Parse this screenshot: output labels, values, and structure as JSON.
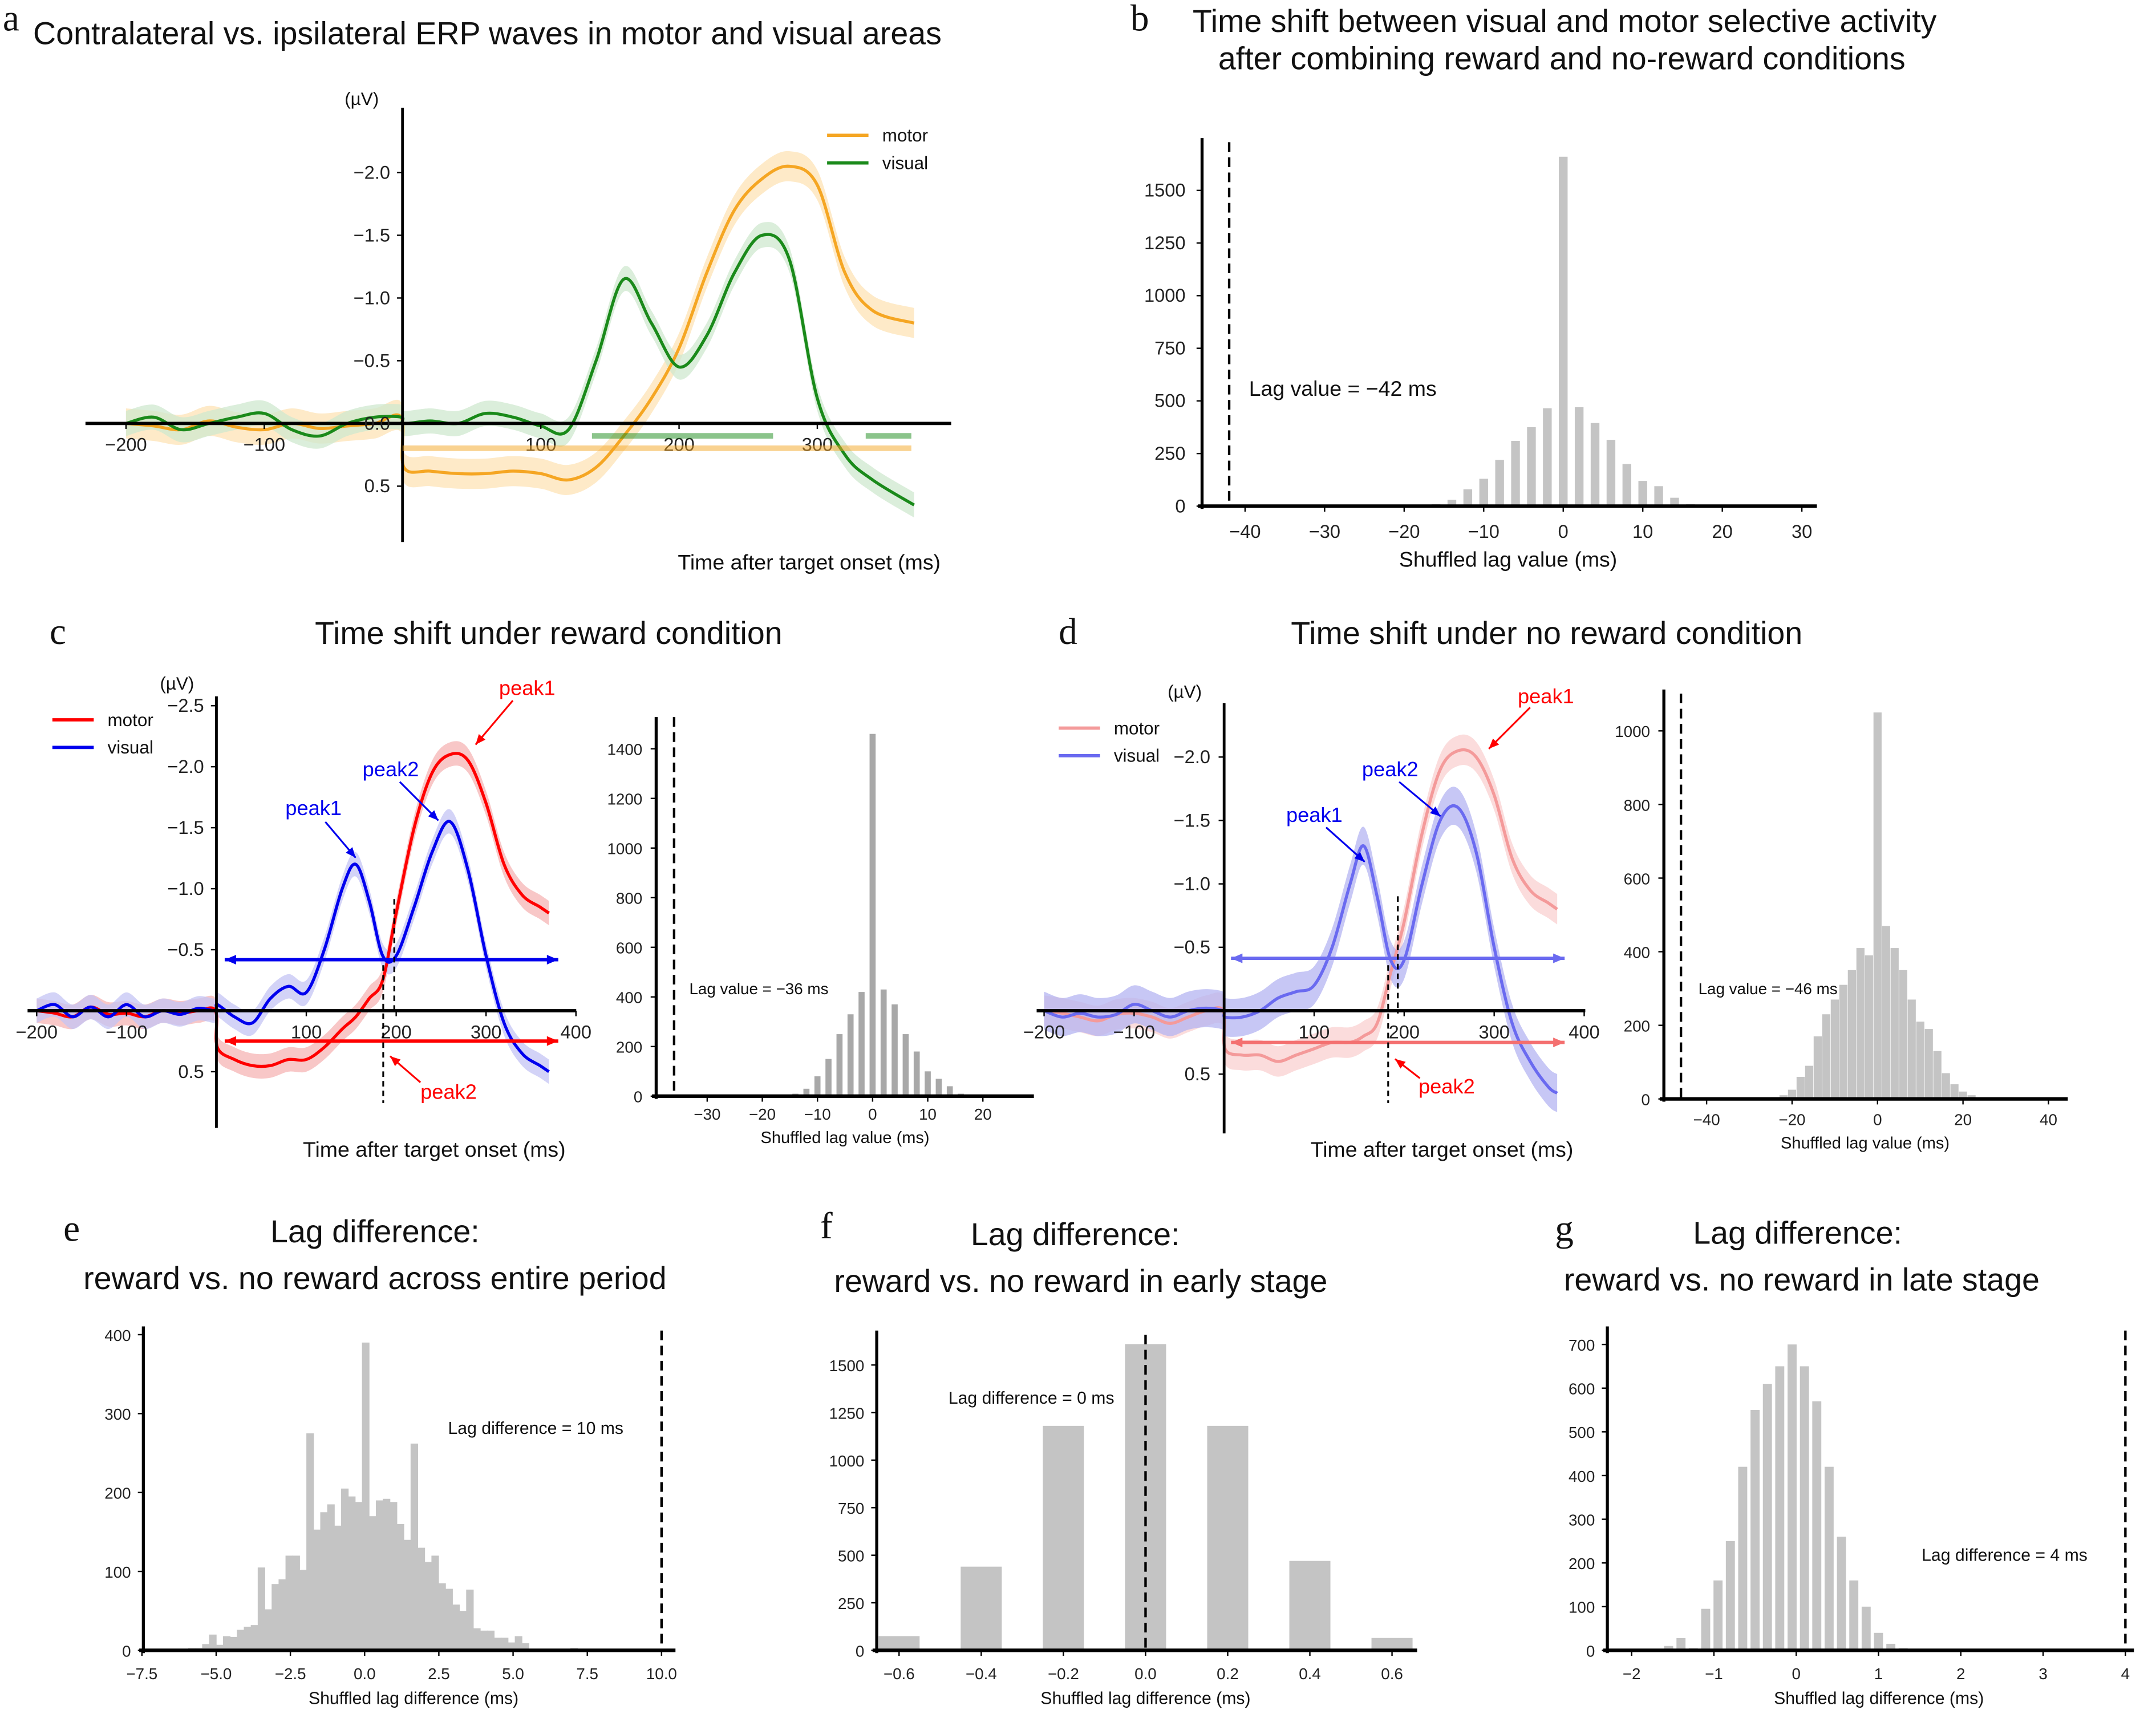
{
  "panels": {
    "a": {
      "letter": "a",
      "title": "Contralateral vs. ipsilateral ERP waves in motor and visual areas",
      "unit": "(µV)",
      "xlabel": "Time after target onset (ms)"
    },
    "b": {
      "letter": "b",
      "title_line1": "Time shift between visual and motor selective activity",
      "title_line2": "after combining reward and no-reward conditions",
      "xlabel": "Shuffled lag value (ms)",
      "annotation": "Lag value = −42 ms"
    },
    "c": {
      "letter": "c",
      "title": "Time shift under reward condition",
      "unit": "(µV)",
      "xlabel": "Time after target onset (ms)",
      "hist_xlabel": "Shuffled lag value (ms)",
      "annotation": "Lag value = −36 ms",
      "peak1_visual": "peak1",
      "peak2_visual": "peak2",
      "peak1_motor": "peak1",
      "peak2_motor": "peak2"
    },
    "d": {
      "letter": "d",
      "title": "Time shift under no reward condition",
      "unit": "(µV)",
      "xlabel": "Time after target onset (ms)",
      "hist_xlabel": "Shuffled lag value (ms)",
      "annotation": "Lag value = −46 ms",
      "peak1_visual": "peak1",
      "peak2_visual": "peak2",
      "peak1_motor": "peak1",
      "peak2_motor": "peak2"
    },
    "e": {
      "letter": "e",
      "title_line1": "Lag difference:",
      "title_line2": "reward vs. no reward across entire period",
      "xlabel": "Shuffled lag difference (ms)",
      "annotation": "Lag difference = 10 ms"
    },
    "f": {
      "letter": "f",
      "title_line1": "Lag difference:",
      "title_line2": "reward vs. no reward in early stage",
      "xlabel": "Shuffled lag difference (ms)",
      "annotation": "Lag difference = 0 ms"
    },
    "g": {
      "letter": "g",
      "title_line1": "Lag difference:",
      "title_line2": "reward vs. no reward in late stage",
      "xlabel": "Shuffled lag difference (ms)",
      "annotation": "Lag difference = 4 ms"
    }
  },
  "chart_data": [
    {
      "id": "a",
      "type": "line",
      "ylabel": "(µV)",
      "xlabel": "Time after target onset (ms)",
      "y_inverted": true,
      "xticks": [
        "−200",
        "−100",
        "100",
        "200",
        "300"
      ],
      "yticks": [
        "−2.0",
        "−1.5",
        "−1.0",
        "−0.5",
        "0.0",
        "0.5"
      ],
      "legend": "top-right",
      "x": [
        -200,
        -180,
        -160,
        -140,
        -120,
        -100,
        -80,
        -60,
        -40,
        -20,
        -1,
        1,
        20,
        40,
        60,
        80,
        100,
        120,
        140,
        160,
        180,
        200,
        220,
        240,
        260,
        280,
        300,
        320,
        340,
        370
      ],
      "series": [
        {
          "name": "motor",
          "color": "#f5a623",
          "band": "#fde3b6",
          "ci": 0.12,
          "values": [
            0,
            0.02,
            0.05,
            -0.02,
            0.03,
            0.05,
            0,
            0.04,
            0.02,
            0,
            -0.05,
            0.35,
            0.38,
            0.4,
            0.4,
            0.38,
            0.4,
            0.45,
            0.35,
            0.1,
            -0.2,
            -0.6,
            -1.2,
            -1.7,
            -1.95,
            -2.05,
            -1.9,
            -1.2,
            -0.9,
            -0.8
          ]
        },
        {
          "name": "visual",
          "color": "#1a8a1a",
          "band": "#cfe8cf",
          "ci": 0.1,
          "values": [
            0,
            -0.05,
            0.05,
            0,
            -0.05,
            -0.08,
            0.05,
            0.1,
            0,
            -0.05,
            -0.05,
            0,
            -0.02,
            0,
            -0.08,
            -0.05,
            0.02,
            0.05,
            -0.5,
            -1.15,
            -0.8,
            -0.45,
            -0.7,
            -1.2,
            -1.5,
            -1.3,
            -0.2,
            0.25,
            0.45,
            0.65
          ]
        }
      ],
      "significance": [
        {
          "series": "visual",
          "ranges": [
            [
              137,
              268
            ],
            [
              335,
              368
            ]
          ]
        },
        {
          "series": "motor",
          "ranges": [
            [
              0,
              368
            ]
          ]
        }
      ]
    },
    {
      "id": "b",
      "type": "bar",
      "xlabel": "Shuffled lag value (ms)",
      "xlim": [
        -45,
        31
      ],
      "ylim": [
        0,
        1750
      ],
      "xticks": [
        "−40",
        "−30",
        "−20",
        "−10",
        "0",
        "10",
        "20",
        "30"
      ],
      "yticks": [
        "0",
        "250",
        "500",
        "750",
        "1000",
        "1250",
        "1500"
      ],
      "bins": [
        -16,
        -14,
        -12,
        -10,
        -8,
        -6,
        -4,
        -2,
        0,
        2,
        4,
        6,
        8,
        10,
        12,
        14,
        16
      ],
      "counts": [
        10,
        30,
        80,
        130,
        220,
        310,
        375,
        465,
        1660,
        470,
        395,
        315,
        200,
        120,
        95,
        40,
        10
      ],
      "bar_width": 1.1,
      "observed_value": -42,
      "annotation": "Lag value = −42 ms"
    },
    {
      "id": "c-erp",
      "type": "line",
      "ylabel": "(µV)",
      "xlabel": "Time after target onset (ms)",
      "y_inverted": true,
      "xticks": [
        "−200",
        "−100",
        "100",
        "200",
        "300",
        "400"
      ],
      "yticks": [
        "−2.5",
        "−2.0",
        "−1.5",
        "−1.0",
        "−0.5",
        "0.5"
      ],
      "legend": "top-left",
      "x": [
        -200,
        -180,
        -160,
        -140,
        -120,
        -100,
        -80,
        -60,
        -40,
        -20,
        -1,
        1,
        20,
        40,
        60,
        80,
        100,
        120,
        140,
        155,
        170,
        185,
        200,
        220,
        240,
        260,
        280,
        300,
        320,
        340,
        360,
        370
      ],
      "series": [
        {
          "name": "motor",
          "color": "#ff0000",
          "band": "#f6b4b4",
          "ci": 0.1,
          "values": [
            0,
            0.02,
            0.05,
            -0.03,
            0.03,
            0.02,
            0.05,
            0,
            0.02,
            0,
            0,
            0.3,
            0.4,
            0.45,
            0.45,
            0.4,
            0.4,
            0.3,
            0.15,
            0.05,
            -0.1,
            -0.25,
            -0.8,
            -1.5,
            -1.95,
            -2.1,
            -2.05,
            -1.7,
            -1.2,
            -0.95,
            -0.85,
            -0.8
          ]
        },
        {
          "name": "visual",
          "color": "#0000ee",
          "band": "#c4c4f4",
          "ci": 0.1,
          "values": [
            0,
            -0.05,
            0.05,
            -0.03,
            0.05,
            -0.05,
            0.05,
            0,
            0.03,
            -0.02,
            0,
            -0.05,
            0.05,
            0.1,
            -0.1,
            -0.2,
            -0.15,
            -0.5,
            -1.0,
            -1.2,
            -0.9,
            -0.45,
            -0.45,
            -0.85,
            -1.3,
            -1.55,
            -1.15,
            -0.45,
            0.1,
            0.35,
            0.45,
            0.5
          ]
        }
      ]
    },
    {
      "id": "c-hist",
      "type": "bar",
      "xlabel": "Shuffled lag value (ms)",
      "xticks": [
        "−30",
        "−20",
        "−10",
        "0",
        "10",
        "20"
      ],
      "yticks": [
        "0",
        "200",
        "400",
        "600",
        "800",
        "1000",
        "1200",
        "1400"
      ],
      "bins": [
        -16,
        -14,
        -12,
        -10,
        -8,
        -6,
        -4,
        -2,
        0,
        2,
        4,
        6,
        8,
        10,
        12,
        14,
        16
      ],
      "counts": [
        5,
        10,
        30,
        80,
        150,
        250,
        330,
        420,
        1460,
        430,
        370,
        250,
        180,
        100,
        70,
        40,
        10
      ],
      "bar_width": 1.1,
      "observed_value": -36,
      "annotation": "Lag value = −36 ms"
    },
    {
      "id": "d-erp",
      "type": "line",
      "ylabel": "(µV)",
      "xlabel": "Time after target onset (ms)",
      "y_inverted": true,
      "xticks": [
        "−200",
        "−100",
        "100",
        "200",
        "300",
        "400"
      ],
      "yticks": [
        "−2.0",
        "−1.5",
        "−1.0",
        "−0.5",
        "0.5"
      ],
      "legend": "top-left",
      "x": [
        -200,
        -180,
        -160,
        -140,
        -120,
        -100,
        -80,
        -60,
        -40,
        -20,
        -1,
        1,
        20,
        40,
        60,
        80,
        100,
        120,
        140,
        155,
        170,
        185,
        200,
        220,
        240,
        260,
        280,
        300,
        320,
        340,
        360,
        370
      ],
      "series": [
        {
          "name": "motor",
          "color": "#f49a9a",
          "band": "#fad0d0",
          "ci": 0.12,
          "values": [
            0,
            0.02,
            0.05,
            0.08,
            0.03,
            0.02,
            0.05,
            0.1,
            0.05,
            0,
            0,
            0.3,
            0.35,
            0.35,
            0.4,
            0.35,
            0.3,
            0.25,
            0.25,
            0.2,
            0.1,
            -0.3,
            -0.7,
            -1.4,
            -1.9,
            -2.05,
            -2.0,
            -1.7,
            -1.2,
            -0.95,
            -0.85,
            -0.8
          ]
        },
        {
          "name": "visual",
          "color": "#6a6af0",
          "band": "#b4b4f2",
          "ci": 0.15,
          "values": [
            0,
            0.05,
            0.02,
            0.05,
            0.03,
            -0.05,
            0,
            0.05,
            0,
            -0.02,
            0,
            0.05,
            0.05,
            0,
            -0.1,
            -0.15,
            -0.2,
            -0.5,
            -1.0,
            -1.3,
            -0.9,
            -0.4,
            -0.4,
            -1.0,
            -1.5,
            -1.6,
            -1.25,
            -0.5,
            0.1,
            0.4,
            0.6,
            0.65
          ]
        }
      ]
    },
    {
      "id": "d-hist",
      "type": "bar",
      "xlabel": "Shuffled lag value (ms)",
      "xticks": [
        "−40",
        "−20",
        "0",
        "20",
        "40"
      ],
      "yticks": [
        "0",
        "200",
        "400",
        "600",
        "800",
        "1000"
      ],
      "bins": [
        -24,
        -22,
        -20,
        -18,
        -16,
        -14,
        -12,
        -10,
        -8,
        -6,
        -4,
        -2,
        0,
        2,
        4,
        6,
        8,
        10,
        12,
        14,
        16,
        18,
        20,
        22
      ],
      "counts": [
        5,
        10,
        25,
        60,
        90,
        170,
        230,
        270,
        310,
        350,
        410,
        390,
        1050,
        470,
        410,
        350,
        270,
        210,
        190,
        130,
        70,
        40,
        20,
        10
      ],
      "bar_width": 1.9,
      "observed_value": -46,
      "annotation": "Lag value = −46 ms"
    },
    {
      "id": "e",
      "type": "bar",
      "xlabel": "Shuffled lag difference (ms)",
      "xticks": [
        "−7.5",
        "−5.0",
        "−2.5",
        "0.0",
        "2.5",
        "5.0",
        "7.5",
        "10.0"
      ],
      "yticks": [
        "0",
        "100",
        "200",
        "300",
        "400"
      ],
      "bin_start": -5.94,
      "bar_width": 0.234,
      "counts": [
        3,
        3,
        8,
        20,
        7,
        18,
        17,
        26,
        30,
        32,
        105,
        52,
        84,
        90,
        120,
        120,
        102,
        275,
        153,
        175,
        185,
        158,
        205,
        195,
        188,
        390,
        170,
        190,
        192,
        188,
        160,
        140,
        262,
        130,
        112,
        120,
        85,
        78,
        58,
        50,
        77,
        28,
        25,
        25,
        16,
        16,
        10,
        18,
        9,
        0,
        2,
        0,
        0,
        0,
        0,
        3
      ],
      "observed_value": 10,
      "annotation": "Lag difference = 10 ms"
    },
    {
      "id": "f",
      "type": "bar",
      "xlabel": "Shuffled lag difference (ms)",
      "xticks": [
        "−0.6",
        "−0.4",
        "−0.2",
        "0.0",
        "0.2",
        "0.4",
        "0.6"
      ],
      "yticks": [
        "0",
        "250",
        "500",
        "750",
        "1000",
        "1250",
        "1500"
      ],
      "bins": [
        -0.6,
        -0.4,
        -0.2,
        0.0,
        0.2,
        0.4,
        0.6
      ],
      "counts": [
        75,
        440,
        1180,
        1610,
        1180,
        470,
        65
      ],
      "bar_width": 0.1,
      "observed_value": 0,
      "annotation": "Lag difference = 0 ms"
    },
    {
      "id": "g",
      "type": "bar",
      "xlabel": "Shuffled lag difference (ms)",
      "xticks": [
        "−2",
        "−1",
        "0",
        "1",
        "2",
        "3",
        "4"
      ],
      "yticks": [
        "0",
        "100",
        "200",
        "300",
        "400",
        "500",
        "600",
        "700"
      ],
      "bins": [
        -1.85,
        -1.7,
        -1.55,
        -1.4,
        -1.25,
        -1.1,
        -0.95,
        -0.8,
        -0.65,
        -0.5,
        -0.35,
        -0.2,
        -0.05,
        0.1,
        0.25,
        0.4,
        0.55,
        0.7,
        0.85,
        1.0,
        1.15,
        1.3,
        1.45,
        1.6
      ],
      "counts": [
        3,
        3,
        10,
        28,
        5,
        95,
        160,
        250,
        420,
        550,
        610,
        650,
        700,
        650,
        570,
        420,
        260,
        160,
        100,
        40,
        15,
        5,
        3,
        1
      ],
      "bar_width": 0.11,
      "observed_value": 4,
      "annotation": "Lag difference = 4 ms"
    }
  ]
}
